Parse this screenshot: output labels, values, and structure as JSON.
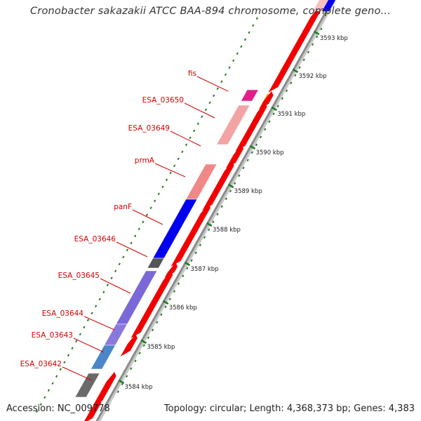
{
  "title": "Cronobacter sakazakii ATCC BAA-894 chromosome, complete geno...",
  "footer": {
    "accession": "Accession: NC_009778",
    "summary": "Topology: circular; Length: 4,368,373 bp; Genes: 4,383"
  },
  "colors": {
    "forward_gene": "#f20000",
    "backbone": "#9a9a9a",
    "label_text": "#d40000",
    "tick_mark": "#1f7a1f",
    "blue_gene": "#0000ee",
    "violet_gene": "#7b68d8",
    "steel_blue_gene": "#4a86c8",
    "pink_gene": "#f08888",
    "gray_gene": "#707070"
  },
  "scale_labels": [
    "3593 kbp",
    "3592 kbp",
    "3591 kbp",
    "3590 kbp",
    "3589 kbp",
    "3588 kbp",
    "3587 kbp",
    "3586 kbp",
    "3585 kbp",
    "3584 kbp"
  ],
  "genes": [
    {
      "name": "fis",
      "color": "#e0208a",
      "icon": "gene-segment"
    },
    {
      "name": "ESA_03650",
      "color": "#f3a3a3",
      "icon": "gene-segment"
    },
    {
      "name": "ESA_03649",
      "color": "#f3a3a3",
      "icon": "gene-segment"
    },
    {
      "name": "prmA",
      "color": "#f08888",
      "icon": "gene-segment"
    },
    {
      "name": "panF",
      "color": "#0000ee",
      "icon": "gene-segment"
    },
    {
      "name": "ESA_03646",
      "color": "#555555",
      "icon": "gene-segment"
    },
    {
      "name": "ESA_03645",
      "color": "#7b68d8",
      "icon": "gene-segment"
    },
    {
      "name": "ESA_03644",
      "color": "#8a78de",
      "icon": "gene-segment"
    },
    {
      "name": "ESA_03643",
      "color": "#4a86c8",
      "icon": "gene-segment"
    },
    {
      "name": "ESA_03642",
      "color": "#6a6a6a",
      "icon": "gene-segment"
    }
  ]
}
